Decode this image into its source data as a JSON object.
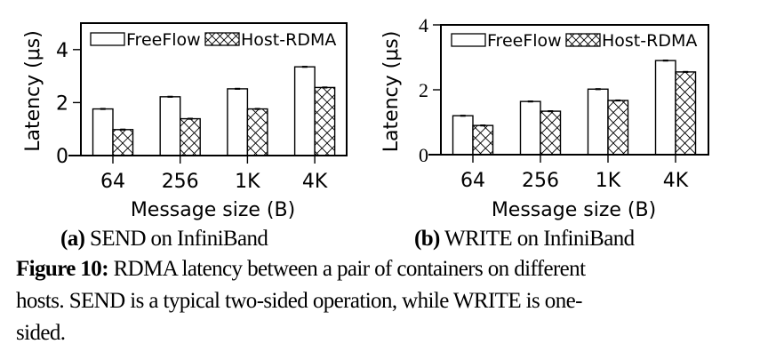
{
  "chart_data": [
    {
      "id": "a",
      "type": "bar",
      "title": "SEND on InfiniBand",
      "subcaption_label": "(a)",
      "xlabel": "Message size (B)",
      "ylabel": "Latency (μs)",
      "categories": [
        "64",
        "256",
        "1K",
        "4K"
      ],
      "ylim": [
        0,
        5
      ],
      "yticks": [
        0,
        2,
        4
      ],
      "grid": false,
      "legend_position": "top (inside plot, single row)",
      "series": [
        {
          "name": "FreeFlow",
          "pattern": "none",
          "values": [
            1.76,
            2.22,
            2.52,
            3.35
          ],
          "error_bars": true
        },
        {
          "name": "Host-RDMA",
          "pattern": "crosshatch",
          "values": [
            0.98,
            1.39,
            1.76,
            2.57
          ],
          "error_bars": true
        }
      ]
    },
    {
      "id": "b",
      "type": "bar",
      "title": "WRITE on InfiniBand",
      "subcaption_label": "(b)",
      "xlabel": "Message size (B)",
      "ylabel": "Latency (μs)",
      "categories": [
        "64",
        "256",
        "1K",
        "4K"
      ],
      "ylim": [
        0,
        4
      ],
      "yticks": [
        0,
        2,
        4
      ],
      "grid": false,
      "legend_position": "top (inside plot, single row)",
      "series": [
        {
          "name": "FreeFlow",
          "pattern": "none",
          "values": [
            1.2,
            1.64,
            2.02,
            2.9
          ],
          "error_bars": true
        },
        {
          "name": "Host-RDMA",
          "pattern": "crosshatch",
          "values": [
            0.9,
            1.34,
            1.67,
            2.55
          ],
          "error_bars": true
        }
      ]
    }
  ],
  "subcaptions": {
    "a": {
      "label": "(a)",
      "text": " SEND on InfiniBand"
    },
    "b": {
      "label": "(b)",
      "text": " WRITE on InfiniBand"
    }
  },
  "caption": {
    "label": "Figure 10:",
    "line1": " RDMA latency between a pair of containers on different",
    "line2": "hosts.  SEND is a typical two-sided operation, while WRITE is one-",
    "line3": "sided."
  },
  "colors": {
    "bar_fill": "#ffffff",
    "stroke": "#000000",
    "text": "#000000"
  }
}
